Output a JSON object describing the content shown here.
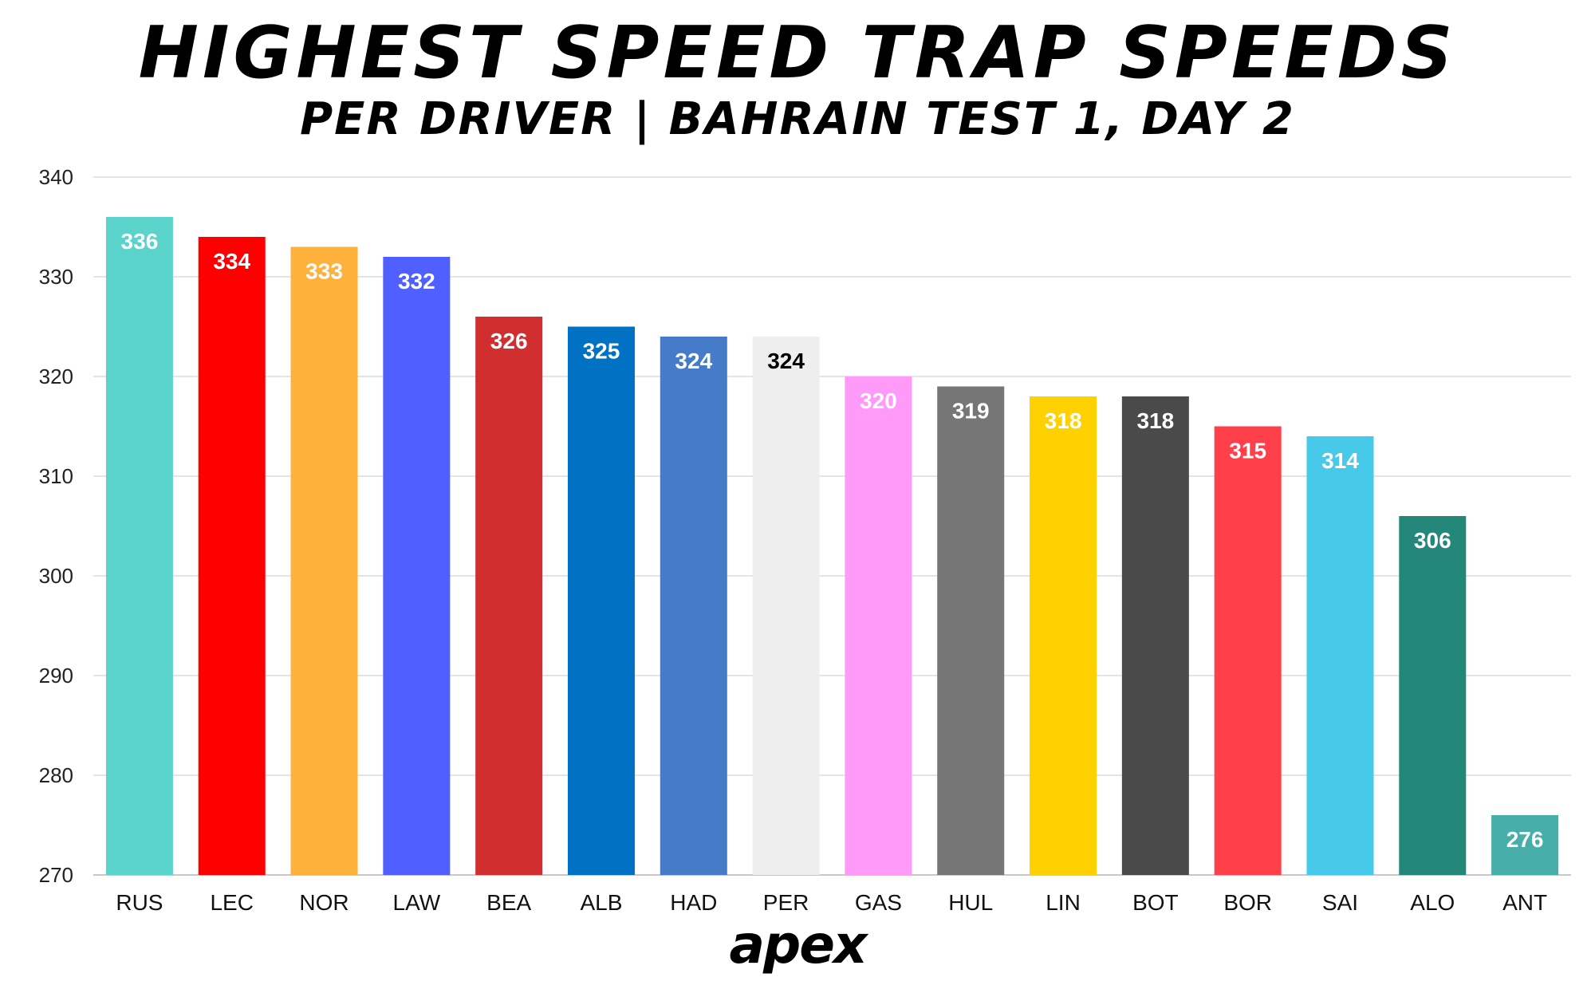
{
  "title": "HIGHEST SPEED TRAP SPEEDS",
  "subtitle": "PER DRIVER | BAHRAIN TEST 1, DAY 2",
  "brand": "apex",
  "chart_data": {
    "type": "bar",
    "title": "HIGHEST SPEED TRAP SPEEDS",
    "subtitle": "PER DRIVER | BAHRAIN TEST 1, DAY 2",
    "xlabel": "",
    "ylabel": "",
    "ylim": [
      270,
      340
    ],
    "yticks": [
      270,
      280,
      290,
      300,
      310,
      320,
      330,
      340
    ],
    "grid": true,
    "legend": "none",
    "categories": [
      "RUS",
      "LEC",
      "NOR",
      "LAW",
      "BEA",
      "ALB",
      "HAD",
      "PER",
      "GAS",
      "HUL",
      "LIN",
      "BOT",
      "BOR",
      "SAI",
      "ALO",
      "ANT"
    ],
    "values": [
      336,
      334,
      333,
      332,
      326,
      325,
      324,
      324,
      320,
      319,
      318,
      318,
      315,
      314,
      306,
      276
    ],
    "colors": [
      "#5AD3CB",
      "#FF0000",
      "#FEB23B",
      "#4F60FF",
      "#D12E30",
      "#0071C3",
      "#467BC9",
      "#EEEEEE",
      "#FF9AF9",
      "#767676",
      "#FFD100",
      "#4A4A4A",
      "#FF404A",
      "#47CAEA",
      "#23887A",
      "#47AEA9"
    ],
    "label_colors": [
      "#ffffff",
      "#ffffff",
      "#ffffff",
      "#ffffff",
      "#ffffff",
      "#ffffff",
      "#ffffff",
      "#000000",
      "#ffffff",
      "#ffffff",
      "#ffffff",
      "#ffffff",
      "#ffffff",
      "#ffffff",
      "#ffffff",
      "#ffffff"
    ]
  }
}
